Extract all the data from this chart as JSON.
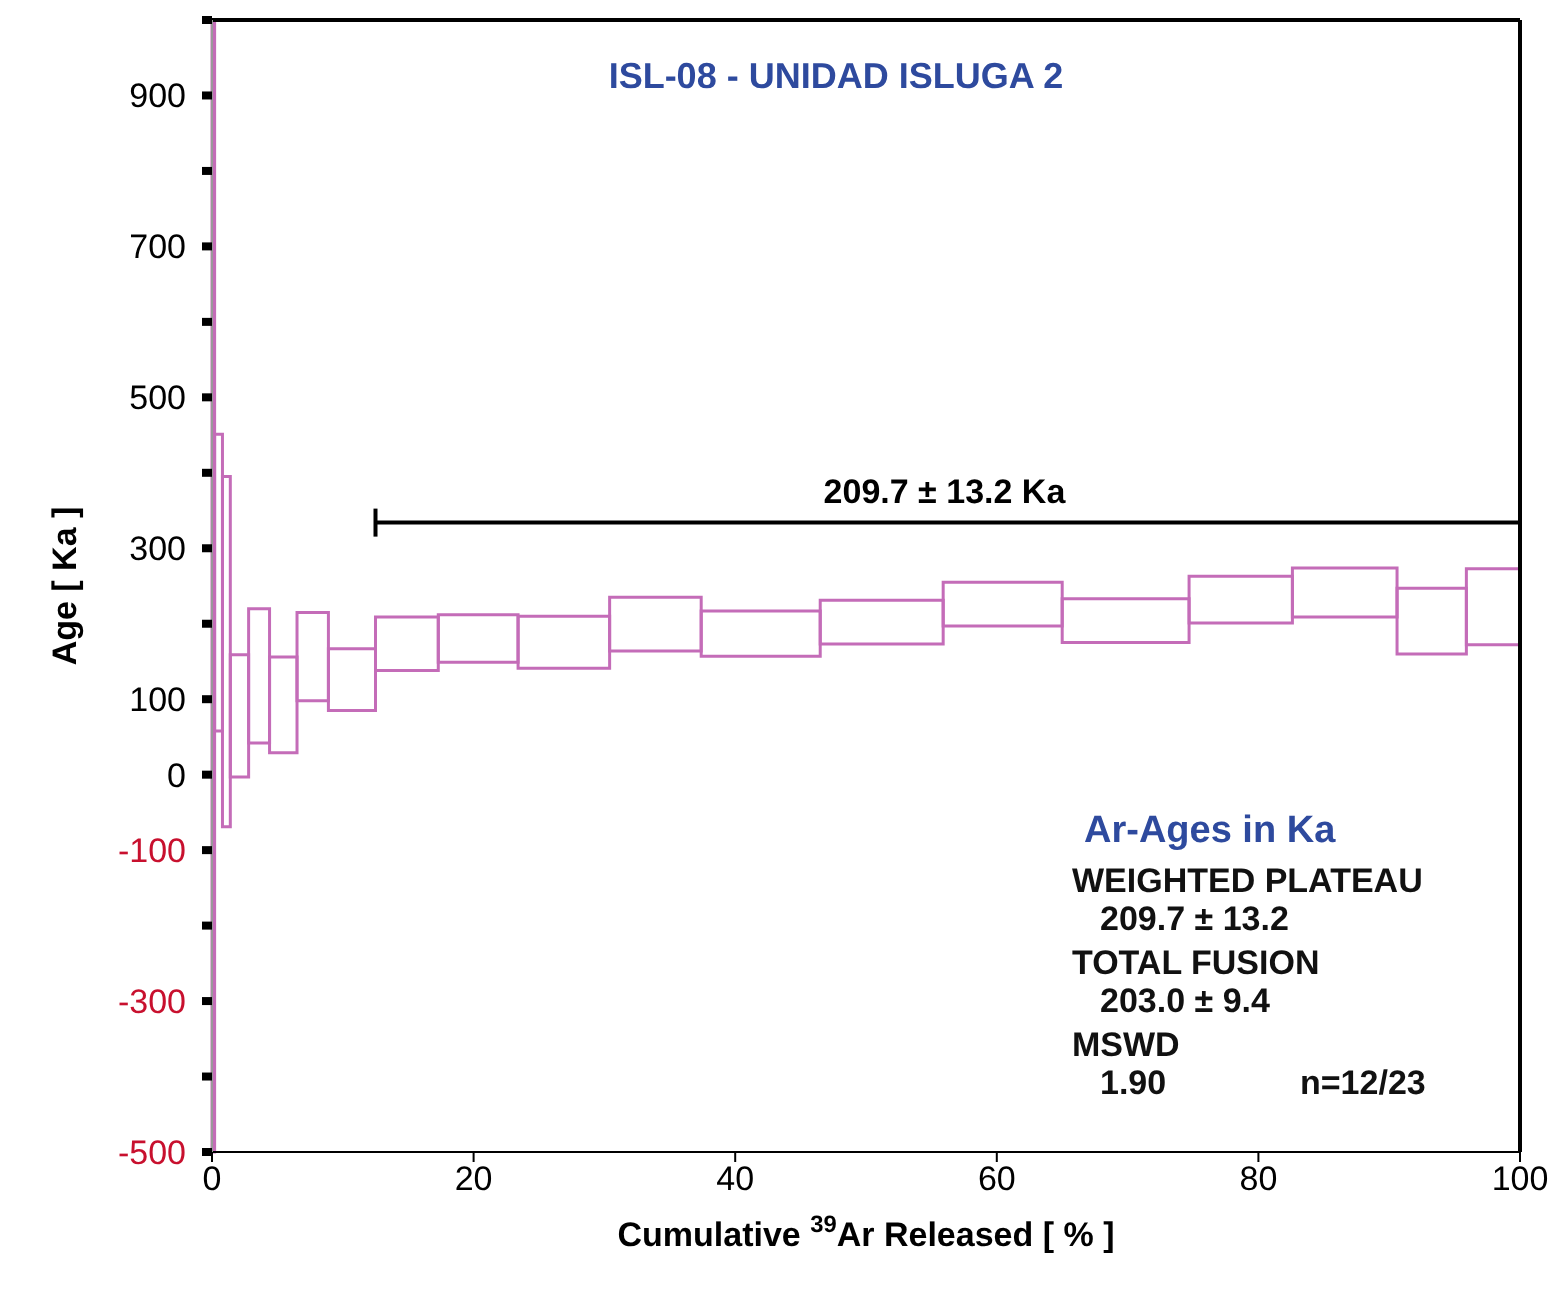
{
  "chart_data": {
    "type": "histogram",
    "title": "ISL-08 - UNIDAD ISLUGA 2",
    "xlabel": "Cumulative $^{39}$Ar Released [ % ]",
    "ylabel": "Age [ Ka ]",
    "bins": [
      0,
      0.2,
      0.8,
      1.4,
      2.8,
      4.4,
      6.5,
      8.9,
      12.5,
      17.3,
      23.4,
      30.4,
      37.4,
      46.5,
      55.9,
      65.0,
      74.7,
      82.6,
      90.6,
      95.9,
      100
    ],
    "base": [
      -500,
      58,
      -69,
      -3,
      42,
      29,
      98,
      85,
      138,
      149,
      141,
      164,
      157,
      173,
      197,
      175,
      201,
      209,
      160,
      172
    ],
    "values": [
      1500,
      393,
      464,
      162,
      178,
      127,
      117,
      82,
      71,
      63,
      69,
      71,
      60,
      58,
      58,
      58,
      62,
      65,
      87,
      101
    ],
    "color": "#c46cb8",
    "series": [
      {
        "type": "line",
        "color": "#000000",
        "x": [
          12.5,
          100
        ],
        "values": [
          334,
          334
        ]
      }
    ],
    "xlim": [
      0,
      100
    ],
    "xticks": [
      0,
      20,
      40,
      60,
      80,
      100
    ],
    "ylim": [
      -500,
      1000
    ],
    "yticks": [
      -500,
      {
        "value": -400,
        "label": null
      },
      -300,
      {
        "value": -200,
        "label": null
      },
      -100,
      0,
      100,
      {
        "value": 200,
        "label": null
      },
      300,
      {
        "value": 400,
        "label": null
      },
      500,
      {
        "value": 600,
        "label": null
      },
      700,
      {
        "value": 800,
        "label": null
      },
      900,
      {
        "value": 1000,
        "label": null
      }
    ],
    "annotations": [
      {
        "text": "209.7 ± 13.2 Ka",
        "x": 56,
        "y": 334
      },
      "Ar-Ages in Ka",
      "WEIGHTED PLATEAU",
      "209.7 ± 13.2",
      "TOTAL FUSION",
      "203.0 ± 9.4",
      "MSWD",
      "1.90",
      "n=12/23"
    ],
    "grid": false
  }
}
